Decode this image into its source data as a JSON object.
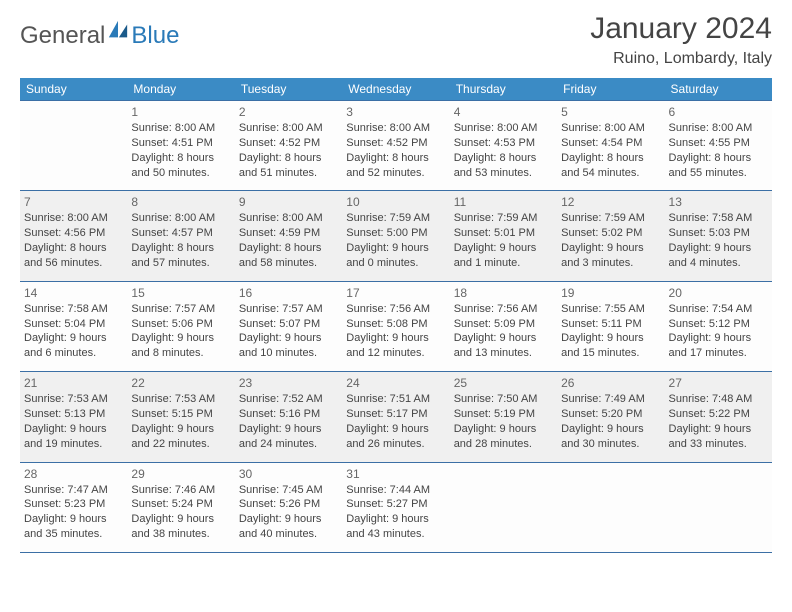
{
  "logo": {
    "general": "General",
    "blue": "Blue"
  },
  "title": "January 2024",
  "location": "Ruino, Lombardy, Italy",
  "colors": {
    "header_bg": "#3b8bc5",
    "header_text": "#ffffff",
    "border": "#3b6fa5",
    "alt_bg": "#f0f0f0",
    "logo_blue": "#2a7ab8",
    "logo_gray": "#555"
  },
  "dayNames": [
    "Sunday",
    "Monday",
    "Tuesday",
    "Wednesday",
    "Thursday",
    "Friday",
    "Saturday"
  ],
  "weeks": [
    [
      {
        "n": "",
        "r": "",
        "s": "",
        "d": ""
      },
      {
        "n": "1",
        "r": "Sunrise: 8:00 AM",
        "s": "Sunset: 4:51 PM",
        "d": "Daylight: 8 hours and 50 minutes."
      },
      {
        "n": "2",
        "r": "Sunrise: 8:00 AM",
        "s": "Sunset: 4:52 PM",
        "d": "Daylight: 8 hours and 51 minutes."
      },
      {
        "n": "3",
        "r": "Sunrise: 8:00 AM",
        "s": "Sunset: 4:52 PM",
        "d": "Daylight: 8 hours and 52 minutes."
      },
      {
        "n": "4",
        "r": "Sunrise: 8:00 AM",
        "s": "Sunset: 4:53 PM",
        "d": "Daylight: 8 hours and 53 minutes."
      },
      {
        "n": "5",
        "r": "Sunrise: 8:00 AM",
        "s": "Sunset: 4:54 PM",
        "d": "Daylight: 8 hours and 54 minutes."
      },
      {
        "n": "6",
        "r": "Sunrise: 8:00 AM",
        "s": "Sunset: 4:55 PM",
        "d": "Daylight: 8 hours and 55 minutes."
      }
    ],
    [
      {
        "n": "7",
        "r": "Sunrise: 8:00 AM",
        "s": "Sunset: 4:56 PM",
        "d": "Daylight: 8 hours and 56 minutes."
      },
      {
        "n": "8",
        "r": "Sunrise: 8:00 AM",
        "s": "Sunset: 4:57 PM",
        "d": "Daylight: 8 hours and 57 minutes."
      },
      {
        "n": "9",
        "r": "Sunrise: 8:00 AM",
        "s": "Sunset: 4:59 PM",
        "d": "Daylight: 8 hours and 58 minutes."
      },
      {
        "n": "10",
        "r": "Sunrise: 7:59 AM",
        "s": "Sunset: 5:00 PM",
        "d": "Daylight: 9 hours and 0 minutes."
      },
      {
        "n": "11",
        "r": "Sunrise: 7:59 AM",
        "s": "Sunset: 5:01 PM",
        "d": "Daylight: 9 hours and 1 minute."
      },
      {
        "n": "12",
        "r": "Sunrise: 7:59 AM",
        "s": "Sunset: 5:02 PM",
        "d": "Daylight: 9 hours and 3 minutes."
      },
      {
        "n": "13",
        "r": "Sunrise: 7:58 AM",
        "s": "Sunset: 5:03 PM",
        "d": "Daylight: 9 hours and 4 minutes."
      }
    ],
    [
      {
        "n": "14",
        "r": "Sunrise: 7:58 AM",
        "s": "Sunset: 5:04 PM",
        "d": "Daylight: 9 hours and 6 minutes."
      },
      {
        "n": "15",
        "r": "Sunrise: 7:57 AM",
        "s": "Sunset: 5:06 PM",
        "d": "Daylight: 9 hours and 8 minutes."
      },
      {
        "n": "16",
        "r": "Sunrise: 7:57 AM",
        "s": "Sunset: 5:07 PM",
        "d": "Daylight: 9 hours and 10 minutes."
      },
      {
        "n": "17",
        "r": "Sunrise: 7:56 AM",
        "s": "Sunset: 5:08 PM",
        "d": "Daylight: 9 hours and 12 minutes."
      },
      {
        "n": "18",
        "r": "Sunrise: 7:56 AM",
        "s": "Sunset: 5:09 PM",
        "d": "Daylight: 9 hours and 13 minutes."
      },
      {
        "n": "19",
        "r": "Sunrise: 7:55 AM",
        "s": "Sunset: 5:11 PM",
        "d": "Daylight: 9 hours and 15 minutes."
      },
      {
        "n": "20",
        "r": "Sunrise: 7:54 AM",
        "s": "Sunset: 5:12 PM",
        "d": "Daylight: 9 hours and 17 minutes."
      }
    ],
    [
      {
        "n": "21",
        "r": "Sunrise: 7:53 AM",
        "s": "Sunset: 5:13 PM",
        "d": "Daylight: 9 hours and 19 minutes."
      },
      {
        "n": "22",
        "r": "Sunrise: 7:53 AM",
        "s": "Sunset: 5:15 PM",
        "d": "Daylight: 9 hours and 22 minutes."
      },
      {
        "n": "23",
        "r": "Sunrise: 7:52 AM",
        "s": "Sunset: 5:16 PM",
        "d": "Daylight: 9 hours and 24 minutes."
      },
      {
        "n": "24",
        "r": "Sunrise: 7:51 AM",
        "s": "Sunset: 5:17 PM",
        "d": "Daylight: 9 hours and 26 minutes."
      },
      {
        "n": "25",
        "r": "Sunrise: 7:50 AM",
        "s": "Sunset: 5:19 PM",
        "d": "Daylight: 9 hours and 28 minutes."
      },
      {
        "n": "26",
        "r": "Sunrise: 7:49 AM",
        "s": "Sunset: 5:20 PM",
        "d": "Daylight: 9 hours and 30 minutes."
      },
      {
        "n": "27",
        "r": "Sunrise: 7:48 AM",
        "s": "Sunset: 5:22 PM",
        "d": "Daylight: 9 hours and 33 minutes."
      }
    ],
    [
      {
        "n": "28",
        "r": "Sunrise: 7:47 AM",
        "s": "Sunset: 5:23 PM",
        "d": "Daylight: 9 hours and 35 minutes."
      },
      {
        "n": "29",
        "r": "Sunrise: 7:46 AM",
        "s": "Sunset: 5:24 PM",
        "d": "Daylight: 9 hours and 38 minutes."
      },
      {
        "n": "30",
        "r": "Sunrise: 7:45 AM",
        "s": "Sunset: 5:26 PM",
        "d": "Daylight: 9 hours and 40 minutes."
      },
      {
        "n": "31",
        "r": "Sunrise: 7:44 AM",
        "s": "Sunset: 5:27 PM",
        "d": "Daylight: 9 hours and 43 minutes."
      },
      {
        "n": "",
        "r": "",
        "s": "",
        "d": ""
      },
      {
        "n": "",
        "r": "",
        "s": "",
        "d": ""
      },
      {
        "n": "",
        "r": "",
        "s": "",
        "d": ""
      }
    ]
  ]
}
